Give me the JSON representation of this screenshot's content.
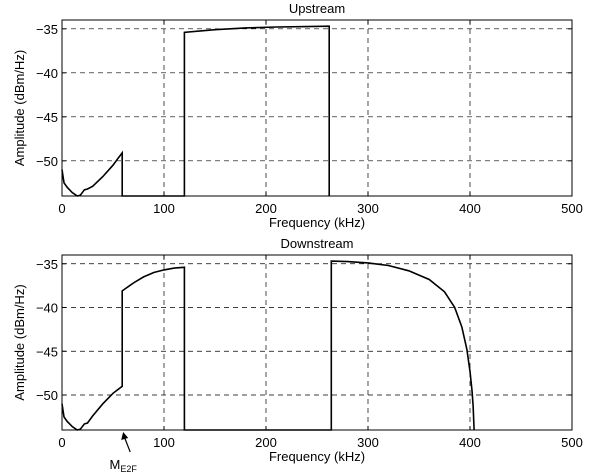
{
  "chart_data": [
    {
      "type": "line",
      "title": "Upstream",
      "xlabel": "Frequency (kHz)",
      "ylabel": "Amplitude (dBm/Hz)",
      "xlim": [
        0,
        500
      ],
      "ylim": [
        -54,
        -34
      ],
      "xticks": [
        0,
        100,
        200,
        300,
        400,
        500
      ],
      "yticks": [
        -35,
        -40,
        -45,
        -50
      ],
      "grid": true,
      "series": [
        {
          "values": [
            [
              0,
              -51
            ],
            [
              2,
              -52.5
            ],
            [
              5,
              -53
            ],
            [
              10,
              -53.6
            ],
            [
              15,
              -54
            ],
            [
              18,
              -53.9
            ],
            [
              22,
              -53.3
            ],
            [
              25,
              -53.2
            ],
            [
              30,
              -52.9
            ],
            [
              40,
              -51.8
            ],
            [
              50,
              -50.5
            ],
            [
              55,
              -49.7
            ],
            [
              59,
              -49.1
            ],
            [
              59,
              -54
            ],
            [
              120,
              -54
            ],
            [
              120,
              -35.4
            ],
            [
              150,
              -35.1
            ],
            [
              180,
              -34.9
            ],
            [
              210,
              -34.8
            ],
            [
              240,
              -34.75
            ],
            [
              262,
              -34.7
            ],
            [
              262,
              -54
            ]
          ]
        }
      ]
    },
    {
      "type": "line",
      "title": "Downstream",
      "xlabel": "Frequency (kHz)",
      "ylabel": "Amplitude (dBm/Hz)",
      "xlim": [
        0,
        500
      ],
      "ylim": [
        -54,
        -34
      ],
      "xticks": [
        0,
        100,
        200,
        300,
        400,
        500
      ],
      "yticks": [
        -35,
        -40,
        -45,
        -50
      ],
      "grid": true,
      "annotation": {
        "label": "M",
        "subscript": "E2F",
        "x": 60
      },
      "series": [
        {
          "values": [
            [
              0,
              -51
            ],
            [
              2,
              -52.5
            ],
            [
              5,
              -53
            ],
            [
              10,
              -53.6
            ],
            [
              15,
              -54
            ],
            [
              18,
              -53.9
            ],
            [
              22,
              -53.3
            ],
            [
              25,
              -53.2
            ],
            [
              30,
              -52.4
            ],
            [
              40,
              -51.0
            ],
            [
              50,
              -49.8
            ],
            [
              59,
              -49.0
            ],
            [
              59,
              -38.1
            ],
            [
              70,
              -37.2
            ],
            [
              80,
              -36.5
            ],
            [
              90,
              -36.0
            ],
            [
              100,
              -35.7
            ],
            [
              110,
              -35.5
            ],
            [
              120,
              -35.4
            ],
            [
              120,
              -54
            ],
            [
              264,
              -54
            ],
            [
              264,
              -34.7
            ],
            [
              280,
              -34.75
            ],
            [
              300,
              -34.9
            ],
            [
              320,
              -35.2
            ],
            [
              340,
              -35.8
            ],
            [
              360,
              -36.8
            ],
            [
              375,
              -38.2
            ],
            [
              385,
              -40.0
            ],
            [
              392,
              -42.2
            ],
            [
              397,
              -44.8
            ],
            [
              400,
              -47.3
            ],
            [
              402,
              -49.5
            ],
            [
              403,
              -51.2
            ],
            [
              404,
              -54
            ]
          ]
        }
      ]
    }
  ]
}
